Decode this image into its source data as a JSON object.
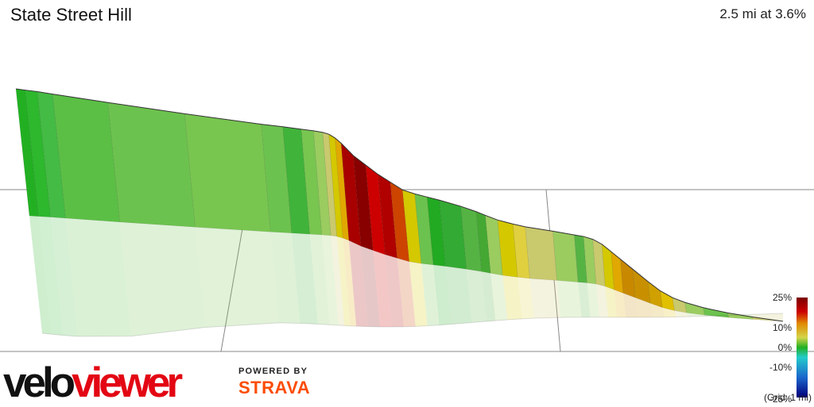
{
  "segment": {
    "title": "State Street Hill",
    "summary": "2.5 mi at 3.6%"
  },
  "branding": {
    "logo_text": "veloviewer",
    "powered_by": "POWERED BY",
    "powered_brand": "STRAVA",
    "logo_color": "#111111",
    "brand_color": "#fc4c02"
  },
  "chart_data": {
    "type": "area",
    "grid_note": "(Grid: 1 mi)",
    "legend": {
      "ticks": [
        "25%",
        "10%",
        "0%",
        "-10%",
        "-25%"
      ],
      "stops": [
        {
          "pct": 25,
          "color": "#7a0000"
        },
        {
          "pct": 18,
          "color": "#cc0000"
        },
        {
          "pct": 12,
          "color": "#e08a00"
        },
        {
          "pct": 5,
          "color": "#d4d44a"
        },
        {
          "pct": 0,
          "color": "#22b022"
        },
        {
          "pct": -5,
          "color": "#22cccc"
        },
        {
          "pct": -15,
          "color": "#1a66cc"
        },
        {
          "pct": -25,
          "color": "#00007a"
        }
      ]
    },
    "elevation_profile": [
      {
        "d": 0.0,
        "e": 100.0,
        "c": "#22b022"
      },
      {
        "d": 0.03,
        "e": 99.6,
        "c": "#2db82d"
      },
      {
        "d": 0.07,
        "e": 99.1,
        "c": "#44bb44"
      },
      {
        "d": 0.12,
        "e": 98.3,
        "c": "#5bbf45"
      },
      {
        "d": 0.3,
        "e": 95.6,
        "c": "#6cc24e"
      },
      {
        "d": 0.55,
        "e": 92.0,
        "c": "#78c550"
      },
      {
        "d": 0.8,
        "e": 88.6,
        "c": "#6cc24e"
      },
      {
        "d": 0.87,
        "e": 87.8,
        "c": "#40b33a"
      },
      {
        "d": 0.93,
        "e": 87.0,
        "c": "#78c550"
      },
      {
        "d": 0.97,
        "e": 86.5,
        "c": "#9acc60"
      },
      {
        "d": 1.0,
        "e": 86.0,
        "c": "#c9c96e"
      },
      {
        "d": 1.02,
        "e": 85.4,
        "c": "#d4c800"
      },
      {
        "d": 1.04,
        "e": 84.2,
        "c": "#e0a800"
      },
      {
        "d": 1.06,
        "e": 82.5,
        "c": "#a80000"
      },
      {
        "d": 1.1,
        "e": 78.5,
        "c": "#880000"
      },
      {
        "d": 1.14,
        "e": 75.5,
        "c": "#cc0000"
      },
      {
        "d": 1.18,
        "e": 72.5,
        "c": "#b00000"
      },
      {
        "d": 1.22,
        "e": 70.0,
        "c": "#cc4400"
      },
      {
        "d": 1.26,
        "e": 67.5,
        "c": "#d4c800"
      },
      {
        "d": 1.3,
        "e": 66.2,
        "c": "#6cc24e"
      },
      {
        "d": 1.34,
        "e": 65.2,
        "c": "#22aa22"
      },
      {
        "d": 1.38,
        "e": 64.2,
        "c": "#33aa33"
      },
      {
        "d": 1.45,
        "e": 62.2,
        "c": "#55b344"
      },
      {
        "d": 1.5,
        "e": 60.5,
        "c": "#44a833"
      },
      {
        "d": 1.53,
        "e": 59.3,
        "c": "#9acc60"
      },
      {
        "d": 1.57,
        "e": 57.8,
        "c": "#d4c800"
      },
      {
        "d": 1.62,
        "e": 56.5,
        "c": "#e0d040"
      },
      {
        "d": 1.66,
        "e": 55.6,
        "c": "#c9c96e"
      },
      {
        "d": 1.75,
        "e": 54.2,
        "c": "#9acc60"
      },
      {
        "d": 1.82,
        "e": 53.0,
        "c": "#55b344"
      },
      {
        "d": 1.85,
        "e": 52.5,
        "c": "#9acc60"
      },
      {
        "d": 1.88,
        "e": 51.6,
        "c": "#c9c96e"
      },
      {
        "d": 1.91,
        "e": 50.0,
        "c": "#d4c800"
      },
      {
        "d": 1.94,
        "e": 47.6,
        "c": "#e0a800"
      },
      {
        "d": 1.97,
        "e": 45.2,
        "c": "#c88800"
      },
      {
        "d": 2.01,
        "e": 42.0,
        "c": "#c89000"
      },
      {
        "d": 2.06,
        "e": 38.0,
        "c": "#d0a000"
      },
      {
        "d": 2.1,
        "e": 35.0,
        "c": "#e0c000"
      },
      {
        "d": 2.14,
        "e": 32.8,
        "c": "#c9c96e"
      },
      {
        "d": 2.18,
        "e": 31.3,
        "c": "#9acc60"
      },
      {
        "d": 2.24,
        "e": 29.6,
        "c": "#6cc24e"
      },
      {
        "d": 2.32,
        "e": 27.9,
        "c": "#9acc60"
      },
      {
        "d": 2.4,
        "e": 26.6,
        "c": "#c9c96e"
      },
      {
        "d": 2.5,
        "e": 25.2,
        "c": null
      }
    ]
  }
}
